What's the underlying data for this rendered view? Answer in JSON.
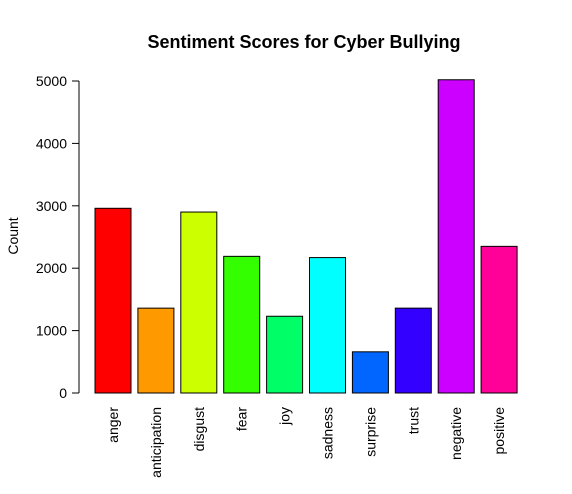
{
  "chart_data": {
    "type": "bar",
    "title": "Sentiment Scores for Cyber Bullying",
    "xlabel": "",
    "ylabel": "Count",
    "ylim": [
      0,
      5000
    ],
    "yticks": [
      0,
      1000,
      2000,
      3000,
      4000,
      5000
    ],
    "grid": false,
    "categories": [
      "anger",
      "anticipation",
      "disgust",
      "fear",
      "joy",
      "sadness",
      "surprise",
      "trust",
      "negative",
      "positive"
    ],
    "values": [
      2960,
      1360,
      2900,
      2190,
      1230,
      2170,
      660,
      1360,
      5020,
      2350
    ],
    "colors": [
      "#FF0000",
      "#FF9900",
      "#CCFF00",
      "#33FF00",
      "#00FF66",
      "#00FFFF",
      "#0066FF",
      "#3300FF",
      "#CC00FF",
      "#FF0099"
    ]
  }
}
